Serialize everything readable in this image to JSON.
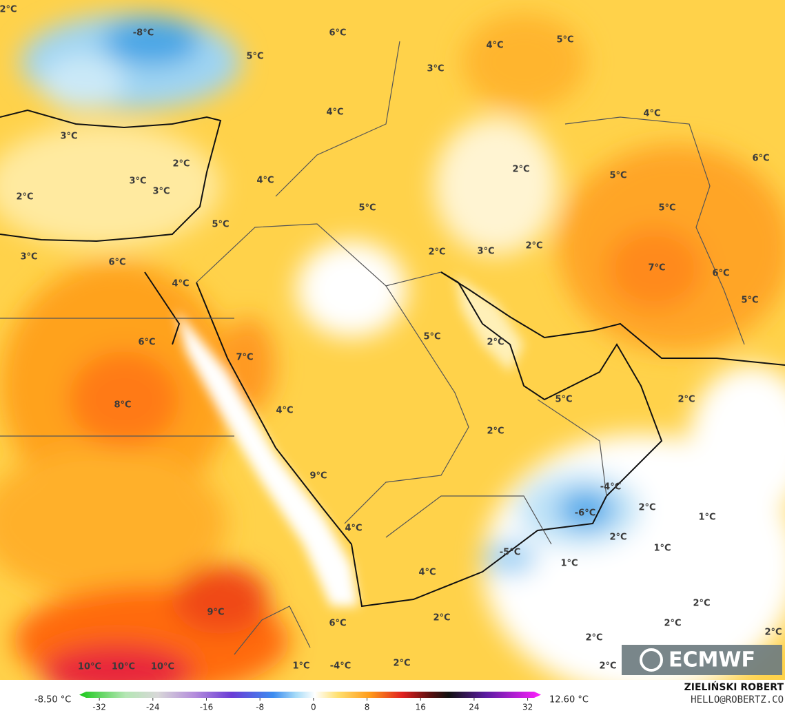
{
  "map": {
    "labels": [
      "2°C",
      "-8°C",
      "6°C",
      "4°C",
      "5°C",
      "5°C",
      "3°C",
      "4°C",
      "4°C",
      "3°C",
      "2°C",
      "6°C",
      "3°C",
      "3°C",
      "4°C",
      "2°C",
      "5°C",
      "2°C",
      "5°C",
      "5°C",
      "5°C",
      "2°C",
      "3°C",
      "2°C",
      "3°C",
      "6°C",
      "7°C",
      "6°C",
      "4°C",
      "5°C",
      "5°C",
      "2°C",
      "6°C",
      "7°C",
      "5°C",
      "2°C",
      "8°C",
      "4°C",
      "2°C",
      "9°C",
      "-4°C",
      "-6°C",
      "2°C",
      "1°C",
      "4°C",
      "2°C",
      "1°C",
      "-5°C",
      "1°C",
      "4°C",
      "9°C",
      "2°C",
      "2°C",
      "6°C",
      "2°C",
      "2°C",
      "2°C",
      "10°C",
      "10°C",
      "10°C",
      "1°C",
      "-4°C",
      "2°C",
      "2°C"
    ]
  },
  "colorbar": {
    "min_label": "-8.50 °C",
    "max_label": "12.60 °C",
    "lim": [
      -35,
      34
    ],
    "ticks": [
      -32,
      -24,
      -16,
      -8,
      0,
      8,
      16,
      24,
      32
    ]
  },
  "logo": "ECMWF",
  "author": "ZIELIŃSKI ROBERT",
  "contact": "HELLO@ROBERTZ.CO"
}
